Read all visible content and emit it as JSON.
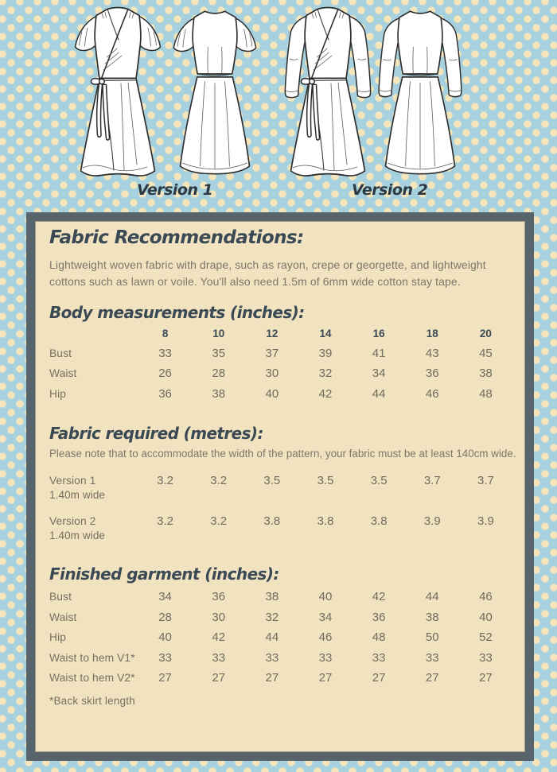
{
  "art": {
    "version1_label": "Version 1",
    "version2_label": "Version 2"
  },
  "fabric_recommendations": {
    "heading": "Fabric Recommendations:",
    "body": "Lightweight woven fabric with drape, such as rayon, crepe or georgette, and lightweight cottons such as lawn or voile. You'll also need 1.5m of 6mm wide cotton stay tape."
  },
  "body_measurements": {
    "heading": "Body measurements (inches):",
    "sizes": [
      "8",
      "10",
      "12",
      "14",
      "16",
      "18",
      "20"
    ],
    "rows": [
      {
        "label": "Bust",
        "values": [
          "33",
          "35",
          "37",
          "39",
          "41",
          "43",
          "45"
        ]
      },
      {
        "label": "Waist",
        "values": [
          "26",
          "28",
          "30",
          "32",
          "34",
          "36",
          "38"
        ]
      },
      {
        "label": "Hip",
        "values": [
          "36",
          "38",
          "40",
          "42",
          "44",
          "46",
          "48"
        ]
      }
    ]
  },
  "fabric_required": {
    "heading": "Fabric required (metres):",
    "note": "Please note that to accommodate the width of the pattern, your fabric must be at least 140cm wide.",
    "rows": [
      {
        "label": "Version 1",
        "sublabel": "1.40m wide",
        "values": [
          "3.2",
          "3.2",
          "3.5",
          "3.5",
          "3.5",
          "3.7",
          "3.7"
        ]
      },
      {
        "label": "Version 2",
        "sublabel": "1.40m wide",
        "values": [
          "3.2",
          "3.2",
          "3.8",
          "3.8",
          "3.8",
          "3.9",
          "3.9"
        ]
      }
    ]
  },
  "finished_garment": {
    "heading": "Finished garment (inches):",
    "rows": [
      {
        "label": "Bust",
        "values": [
          "34",
          "36",
          "38",
          "40",
          "42",
          "44",
          "46"
        ]
      },
      {
        "label": "Waist",
        "values": [
          "28",
          "30",
          "32",
          "34",
          "36",
          "38",
          "40"
        ]
      },
      {
        "label": "Hip",
        "values": [
          "40",
          "42",
          "44",
          "46",
          "48",
          "50",
          "52"
        ]
      },
      {
        "label": "Waist to hem V1*",
        "values": [
          "33",
          "33",
          "33",
          "33",
          "33",
          "33",
          "33"
        ]
      },
      {
        "label": "Waist to hem V2*",
        "values": [
          "27",
          "27",
          "27",
          "27",
          "27",
          "27",
          "27"
        ]
      }
    ],
    "footnote": "*Back skirt length"
  },
  "colors": {
    "background_blue": "#a7d1de",
    "dot_cream": "#f4e5bd",
    "panel_cream": "#f1e3c0",
    "panel_border_slate": "#57646c",
    "heading_dark": "#3b4955",
    "body_text_gray": "#7d7769"
  }
}
